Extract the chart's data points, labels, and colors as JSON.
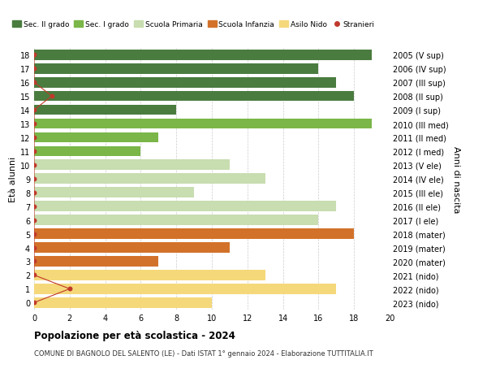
{
  "ages": [
    18,
    17,
    16,
    15,
    14,
    13,
    12,
    11,
    10,
    9,
    8,
    7,
    6,
    5,
    4,
    3,
    2,
    1,
    0
  ],
  "right_labels": [
    "2005 (V sup)",
    "2006 (IV sup)",
    "2007 (III sup)",
    "2008 (II sup)",
    "2009 (I sup)",
    "2010 (III med)",
    "2011 (II med)",
    "2012 (I med)",
    "2013 (V ele)",
    "2014 (IV ele)",
    "2015 (III ele)",
    "2016 (II ele)",
    "2017 (I ele)",
    "2018 (mater)",
    "2019 (mater)",
    "2020 (mater)",
    "2021 (nido)",
    "2022 (nido)",
    "2023 (nido)"
  ],
  "bar_values": [
    19,
    16,
    17,
    18,
    8,
    19,
    7,
    6,
    11,
    13,
    9,
    17,
    16,
    18,
    11,
    7,
    13,
    17,
    10
  ],
  "bar_colors": [
    "#4a7c3f",
    "#4a7c3f",
    "#4a7c3f",
    "#4a7c3f",
    "#4a7c3f",
    "#7ab648",
    "#7ab648",
    "#7ab648",
    "#c8ddb0",
    "#c8ddb0",
    "#c8ddb0",
    "#c8ddb0",
    "#c8ddb0",
    "#d2722a",
    "#d2722a",
    "#d2722a",
    "#f5d87a",
    "#f5d87a",
    "#f5d87a"
  ],
  "stranieri_x": [
    0,
    0,
    0,
    1,
    0,
    0,
    0,
    0,
    0,
    0,
    0,
    0,
    0,
    0,
    0,
    0,
    0,
    2,
    0
  ],
  "legend_labels": [
    "Sec. II grado",
    "Sec. I grado",
    "Scuola Primaria",
    "Scuola Infanzia",
    "Asilo Nido",
    "Stranieri"
  ],
  "legend_colors": [
    "#4a7c3f",
    "#7ab648",
    "#c8ddb0",
    "#d2722a",
    "#f5d87a",
    "#c0392b"
  ],
  "title": "Popolazione per età scolastica - 2024",
  "subtitle": "COMUNE DI BAGNOLO DEL SALENTO (LE) - Dati ISTAT 1° gennaio 2024 - Elaborazione TUTTITALIA.IT",
  "ylabel_left": "Età alunni",
  "ylabel_right": "Anni di nascita",
  "xlim": [
    0,
    20
  ],
  "xticks": [
    0,
    2,
    4,
    6,
    8,
    10,
    12,
    14,
    16,
    18,
    20
  ],
  "bar_height": 0.75,
  "dot_color": "#c0392b",
  "dot_size": 18,
  "line_color": "#c0392b",
  "background_color": "#ffffff",
  "grid_color": "#cccccc"
}
